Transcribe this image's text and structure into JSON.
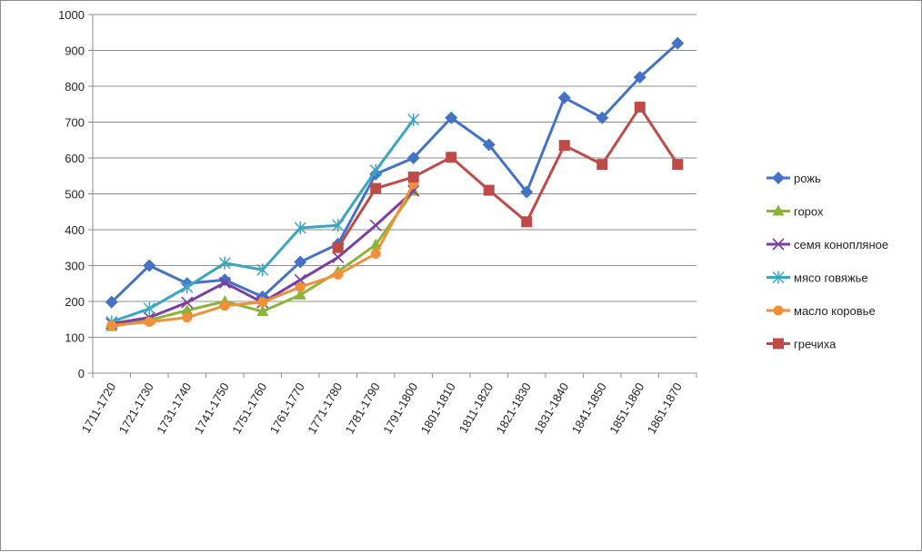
{
  "chart_data": {
    "type": "line",
    "title": "",
    "xlabel": "",
    "ylabel": "",
    "categories": [
      "1711-1720",
      "1721-1730",
      "1731-1740",
      "1741-1750",
      "1751-1760",
      "1761-1770",
      "1771-1780",
      "1781-1790",
      "1791-1800",
      "1801-1810",
      "1811-1820",
      "1821-1830",
      "1831-1840",
      "1841-1850",
      "1851-1860",
      "1861-1870"
    ],
    "ylim": [
      0,
      1000
    ],
    "yticks": [
      0,
      100,
      200,
      300,
      400,
      500,
      600,
      700,
      800,
      900,
      1000
    ],
    "grid": "horizontal",
    "legend_position": "right",
    "series": [
      {
        "name": "рожь",
        "color": "#4472C4",
        "marker": "diamond",
        "values": [
          198,
          300,
          250,
          260,
          213,
          310,
          360,
          555,
          600,
          712,
          637,
          505,
          768,
          712,
          825,
          920
        ]
      },
      {
        "name": "горох",
        "color": "#8DB33A",
        "marker": "triangle",
        "values": [
          130,
          148,
          175,
          200,
          172,
          218,
          283,
          358,
          508,
          null,
          null,
          null,
          null,
          null,
          null,
          null
        ]
      },
      {
        "name": "семя конопляное",
        "color": "#7B3FA0",
        "marker": "x",
        "values": [
          138,
          155,
          197,
          252,
          197,
          260,
          323,
          412,
          508,
          null,
          null,
          null,
          null,
          null,
          null,
          null
        ]
      },
      {
        "name": "мясо говяжье",
        "color": "#3DA5C0",
        "marker": "star",
        "values": [
          143,
          180,
          240,
          307,
          288,
          405,
          412,
          565,
          707,
          null,
          null,
          null,
          null,
          null,
          null,
          null
        ]
      },
      {
        "name": "масло коровье",
        "color": "#F0913A",
        "marker": "circle",
        "values": [
          133,
          143,
          155,
          188,
          198,
          240,
          275,
          333,
          528,
          null,
          null,
          null,
          null,
          null,
          null,
          null
        ]
      },
      {
        "name": "гречиха",
        "color": "#BE4B48",
        "marker": "square",
        "values": [
          null,
          null,
          null,
          null,
          null,
          null,
          350,
          515,
          547,
          602,
          510,
          422,
          635,
          582,
          742,
          582
        ]
      }
    ]
  }
}
